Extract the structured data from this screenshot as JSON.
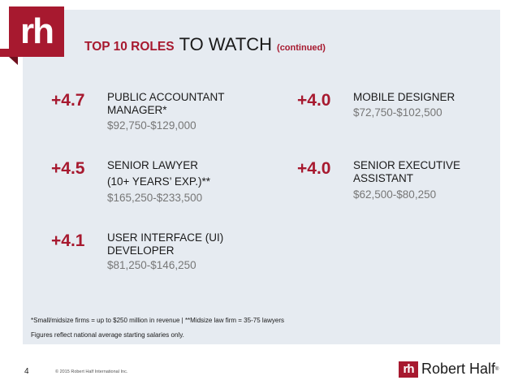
{
  "logo": {
    "text": "rh"
  },
  "title": {
    "part1": "TOP 10 ROLES",
    "part2": "TO WATCH",
    "part3": "(continued)"
  },
  "roles": [
    {
      "change": "+4.7",
      "title": "PUBLIC ACCOUNTANT MANAGER*",
      "salary": "$92,750-$129,000"
    },
    {
      "change": "+4.5",
      "title_line1": "SENIOR LAWYER",
      "title_line2": "(10+ YEARS’ EXP.)**",
      "salary": "$165,250-$233,500"
    },
    {
      "change": "+4.1",
      "title": "USER INTERFACE (UI) DEVELOPER",
      "salary": "$81,250-$146,250"
    },
    {
      "change": "+4.0",
      "title": "MOBILE DESIGNER",
      "salary": "$72,750-$102,500"
    },
    {
      "change": "+4.0",
      "title": "SENIOR EXECUTIVE ASSISTANT",
      "salary": "$62,500-$80,250"
    }
  ],
  "footnotes": {
    "line1": "*Small/midsize firms = up to $250 million in revenue | **Midsize law firm = 35-75 lawyers",
    "line2": "Figures reflect national average starting salaries only."
  },
  "footer": {
    "page_number": "4",
    "copyright": "© 2015 Robert Half International Inc.",
    "brand_mark": "rh",
    "brand_name": "Robert Half",
    "brand_reg": "®"
  }
}
